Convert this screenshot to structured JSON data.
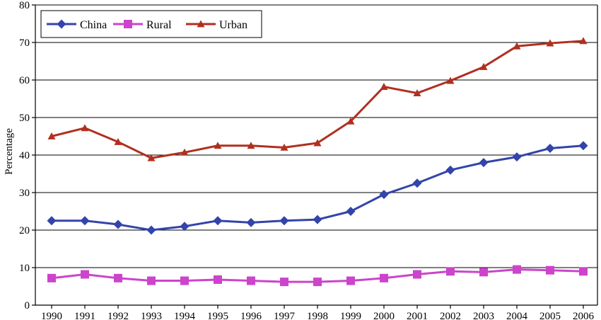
{
  "chart_data": {
    "type": "line",
    "title": "",
    "xlabel": "",
    "ylabel": "Percentage",
    "ylim": [
      0,
      80
    ],
    "yticks": [
      "0",
      "10",
      "20",
      "30",
      "40",
      "50",
      "60",
      "70",
      "80"
    ],
    "grid": true,
    "legend_position": "top-left",
    "x": [
      "1990",
      "1991",
      "1992",
      "1993",
      "1994",
      "1995",
      "1996",
      "1997",
      "1998",
      "1999",
      "2000",
      "2001",
      "2002",
      "2003",
      "2004",
      "2005",
      "2006"
    ],
    "series": [
      {
        "name": "China",
        "color": "#3344aa",
        "marker": "diamond",
        "values": [
          22.5,
          22.5,
          21.5,
          20.0,
          21.0,
          22.5,
          22.0,
          22.5,
          22.8,
          25.0,
          29.5,
          32.5,
          36.0,
          38.0,
          39.5,
          41.8,
          42.5
        ]
      },
      {
        "name": "Rural",
        "color": "#cc44cc",
        "marker": "square",
        "values": [
          7.2,
          8.2,
          7.2,
          6.5,
          6.5,
          6.8,
          6.5,
          6.2,
          6.2,
          6.5,
          7.2,
          8.2,
          9.0,
          8.8,
          9.5,
          9.3,
          9.0
        ]
      },
      {
        "name": "Urban",
        "color": "#b03020",
        "marker": "triangle",
        "values": [
          45.0,
          47.2,
          43.5,
          39.2,
          40.7,
          42.5,
          42.5,
          42.0,
          43.2,
          49.0,
          58.2,
          56.5,
          59.8,
          63.5,
          69.0,
          69.8,
          70.4
        ]
      }
    ]
  }
}
